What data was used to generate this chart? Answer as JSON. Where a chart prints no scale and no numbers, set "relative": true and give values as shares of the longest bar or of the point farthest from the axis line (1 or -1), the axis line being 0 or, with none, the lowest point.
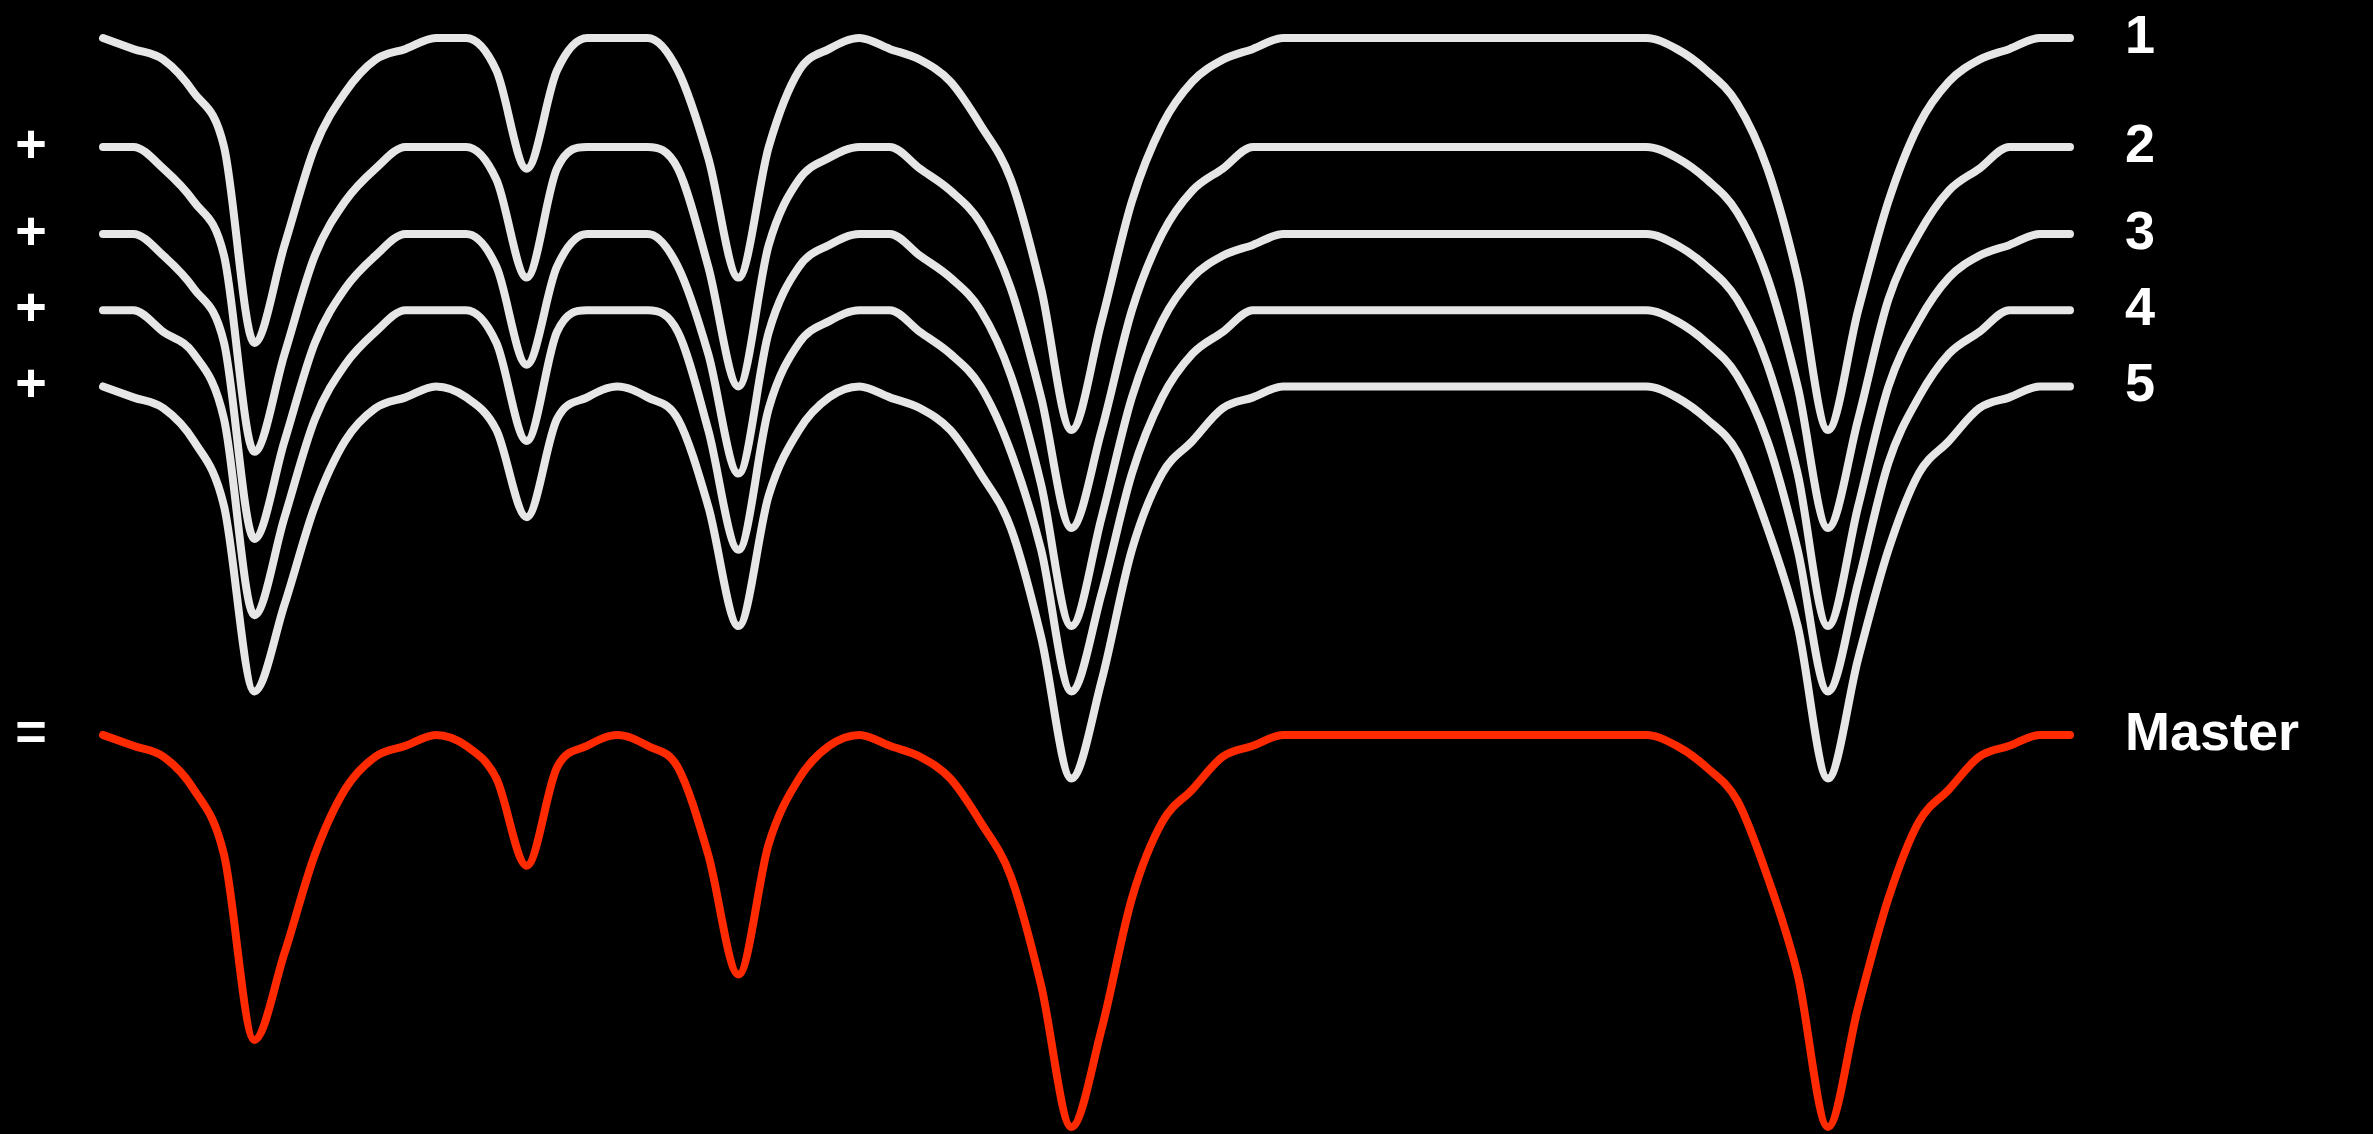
{
  "chart_data": {
    "type": "line",
    "relative": true,
    "legend": false,
    "categories": [
      null,
      null,
      null,
      null,
      null,
      null,
      null,
      null,
      null,
      null,
      null,
      null,
      null,
      null,
      null,
      null,
      null,
      null,
      null,
      null,
      null,
      null,
      null,
      null,
      null,
      null,
      null,
      null,
      null,
      null,
      null,
      null,
      null,
      null,
      null,
      null,
      null,
      null,
      null,
      null,
      null,
      null,
      null,
      null,
      null,
      null,
      null,
      null,
      null,
      null,
      null,
      null,
      null,
      null,
      null,
      null,
      null,
      null,
      null,
      null,
      null,
      null,
      null,
      null,
      null,
      null
    ],
    "annotations": [
      "+",
      "+",
      "+",
      "+",
      "="
    ],
    "series": [
      {
        "name": "1",
        "color": "#e6e6e6",
        "values": [
          1,
          0.99,
          0.98,
          0.95,
          0.9,
          0.72,
          0.81,
          0.9,
          0.95,
          0.98,
          0.99,
          1,
          1,
          0.97,
          0.88,
          0.97,
          1,
          1,
          1,
          0.97,
          0.89,
          0.78,
          0.9,
          0.97,
          0.99,
          1,
          0.99,
          0.98,
          0.96,
          0.92,
          0.87,
          0.77,
          0.64,
          0.74,
          0.85,
          0.92,
          0.96,
          0.98,
          0.99,
          1,
          1,
          1,
          1,
          1,
          1,
          1,
          1,
          1,
          1,
          1,
          1,
          1,
          0.99,
          0.97,
          0.94,
          0.88,
          0.78,
          0.64,
          0.75,
          0.85,
          0.92,
          0.96,
          0.98,
          0.99,
          1,
          1
        ]
      },
      {
        "name": "2",
        "color": "#e6e6e6",
        "values": [
          0.9,
          0.9,
          0.88,
          0.85,
          0.8,
          0.62,
          0.71,
          0.8,
          0.85,
          0.88,
          0.9,
          0.9,
          0.9,
          0.87,
          0.78,
          0.88,
          0.9,
          0.9,
          0.9,
          0.88,
          0.79,
          0.68,
          0.81,
          0.87,
          0.89,
          0.9,
          0.9,
          0.88,
          0.86,
          0.83,
          0.77,
          0.67,
          0.55,
          0.64,
          0.75,
          0.82,
          0.86,
          0.88,
          0.9,
          0.9,
          0.9,
          0.9,
          0.9,
          0.9,
          0.9,
          0.9,
          0.9,
          0.9,
          0.9,
          0.9,
          0.9,
          0.9,
          0.89,
          0.87,
          0.84,
          0.78,
          0.68,
          0.55,
          0.65,
          0.76,
          0.82,
          0.86,
          0.88,
          0.9,
          0.9,
          0.9
        ]
      },
      {
        "name": "3",
        "color": "#e6e6e6",
        "values": [
          0.82,
          0.82,
          0.8,
          0.77,
          0.72,
          0.54,
          0.63,
          0.72,
          0.77,
          0.8,
          0.82,
          0.82,
          0.82,
          0.79,
          0.7,
          0.79,
          0.82,
          0.82,
          0.82,
          0.79,
          0.71,
          0.6,
          0.73,
          0.79,
          0.81,
          0.82,
          0.82,
          0.8,
          0.78,
          0.75,
          0.69,
          0.59,
          0.46,
          0.56,
          0.67,
          0.74,
          0.78,
          0.8,
          0.81,
          0.82,
          0.82,
          0.82,
          0.82,
          0.82,
          0.82,
          0.82,
          0.82,
          0.82,
          0.82,
          0.82,
          0.82,
          0.82,
          0.81,
          0.79,
          0.76,
          0.7,
          0.6,
          0.46,
          0.57,
          0.68,
          0.74,
          0.78,
          0.8,
          0.81,
          0.82,
          0.82
        ]
      },
      {
        "name": "4",
        "color": "#e6e6e6",
        "values": [
          0.75,
          0.75,
          0.73,
          0.71,
          0.65,
          0.47,
          0.56,
          0.65,
          0.7,
          0.73,
          0.75,
          0.75,
          0.75,
          0.72,
          0.63,
          0.73,
          0.75,
          0.75,
          0.75,
          0.73,
          0.64,
          0.53,
          0.66,
          0.72,
          0.74,
          0.75,
          0.75,
          0.73,
          0.71,
          0.68,
          0.62,
          0.53,
          0.4,
          0.49,
          0.6,
          0.67,
          0.71,
          0.73,
          0.75,
          0.75,
          0.75,
          0.75,
          0.75,
          0.75,
          0.75,
          0.75,
          0.75,
          0.75,
          0.75,
          0.75,
          0.75,
          0.75,
          0.74,
          0.72,
          0.69,
          0.63,
          0.53,
          0.4,
          0.5,
          0.61,
          0.67,
          0.71,
          0.73,
          0.75,
          0.75,
          0.75
        ]
      },
      {
        "name": "5",
        "color": "#e6e6e6",
        "values": [
          0.68,
          0.67,
          0.66,
          0.63,
          0.57,
          0.4,
          0.48,
          0.57,
          0.63,
          0.66,
          0.67,
          0.68,
          0.67,
          0.64,
          0.56,
          0.65,
          0.67,
          0.68,
          0.67,
          0.65,
          0.57,
          0.46,
          0.58,
          0.64,
          0.67,
          0.68,
          0.67,
          0.66,
          0.64,
          0.6,
          0.55,
          0.45,
          0.32,
          0.41,
          0.53,
          0.6,
          0.63,
          0.66,
          0.67,
          0.68,
          0.68,
          0.68,
          0.68,
          0.68,
          0.68,
          0.68,
          0.68,
          0.68,
          0.68,
          0.68,
          0.68,
          0.68,
          0.67,
          0.65,
          0.62,
          0.55,
          0.46,
          0.32,
          0.43,
          0.53,
          0.6,
          0.63,
          0.66,
          0.67,
          0.68,
          0.68
        ]
      },
      {
        "name": "Master",
        "color": "#ff2a00",
        "values": [
          0.36,
          0.35,
          0.34,
          0.31,
          0.25,
          0.08,
          0.16,
          0.25,
          0.31,
          0.34,
          0.35,
          0.36,
          0.35,
          0.32,
          0.24,
          0.33,
          0.35,
          0.36,
          0.35,
          0.33,
          0.25,
          0.14,
          0.26,
          0.32,
          0.35,
          0.36,
          0.35,
          0.34,
          0.32,
          0.28,
          0.23,
          0.13,
          0,
          0.09,
          0.21,
          0.28,
          0.31,
          0.34,
          0.35,
          0.36,
          0.36,
          0.36,
          0.36,
          0.36,
          0.36,
          0.36,
          0.36,
          0.36,
          0.36,
          0.36,
          0.36,
          0.36,
          0.35,
          0.33,
          0.3,
          0.23,
          0.14,
          0,
          0.11,
          0.21,
          0.28,
          0.31,
          0.34,
          0.35,
          0.36,
          0.36
        ]
      }
    ]
  }
}
